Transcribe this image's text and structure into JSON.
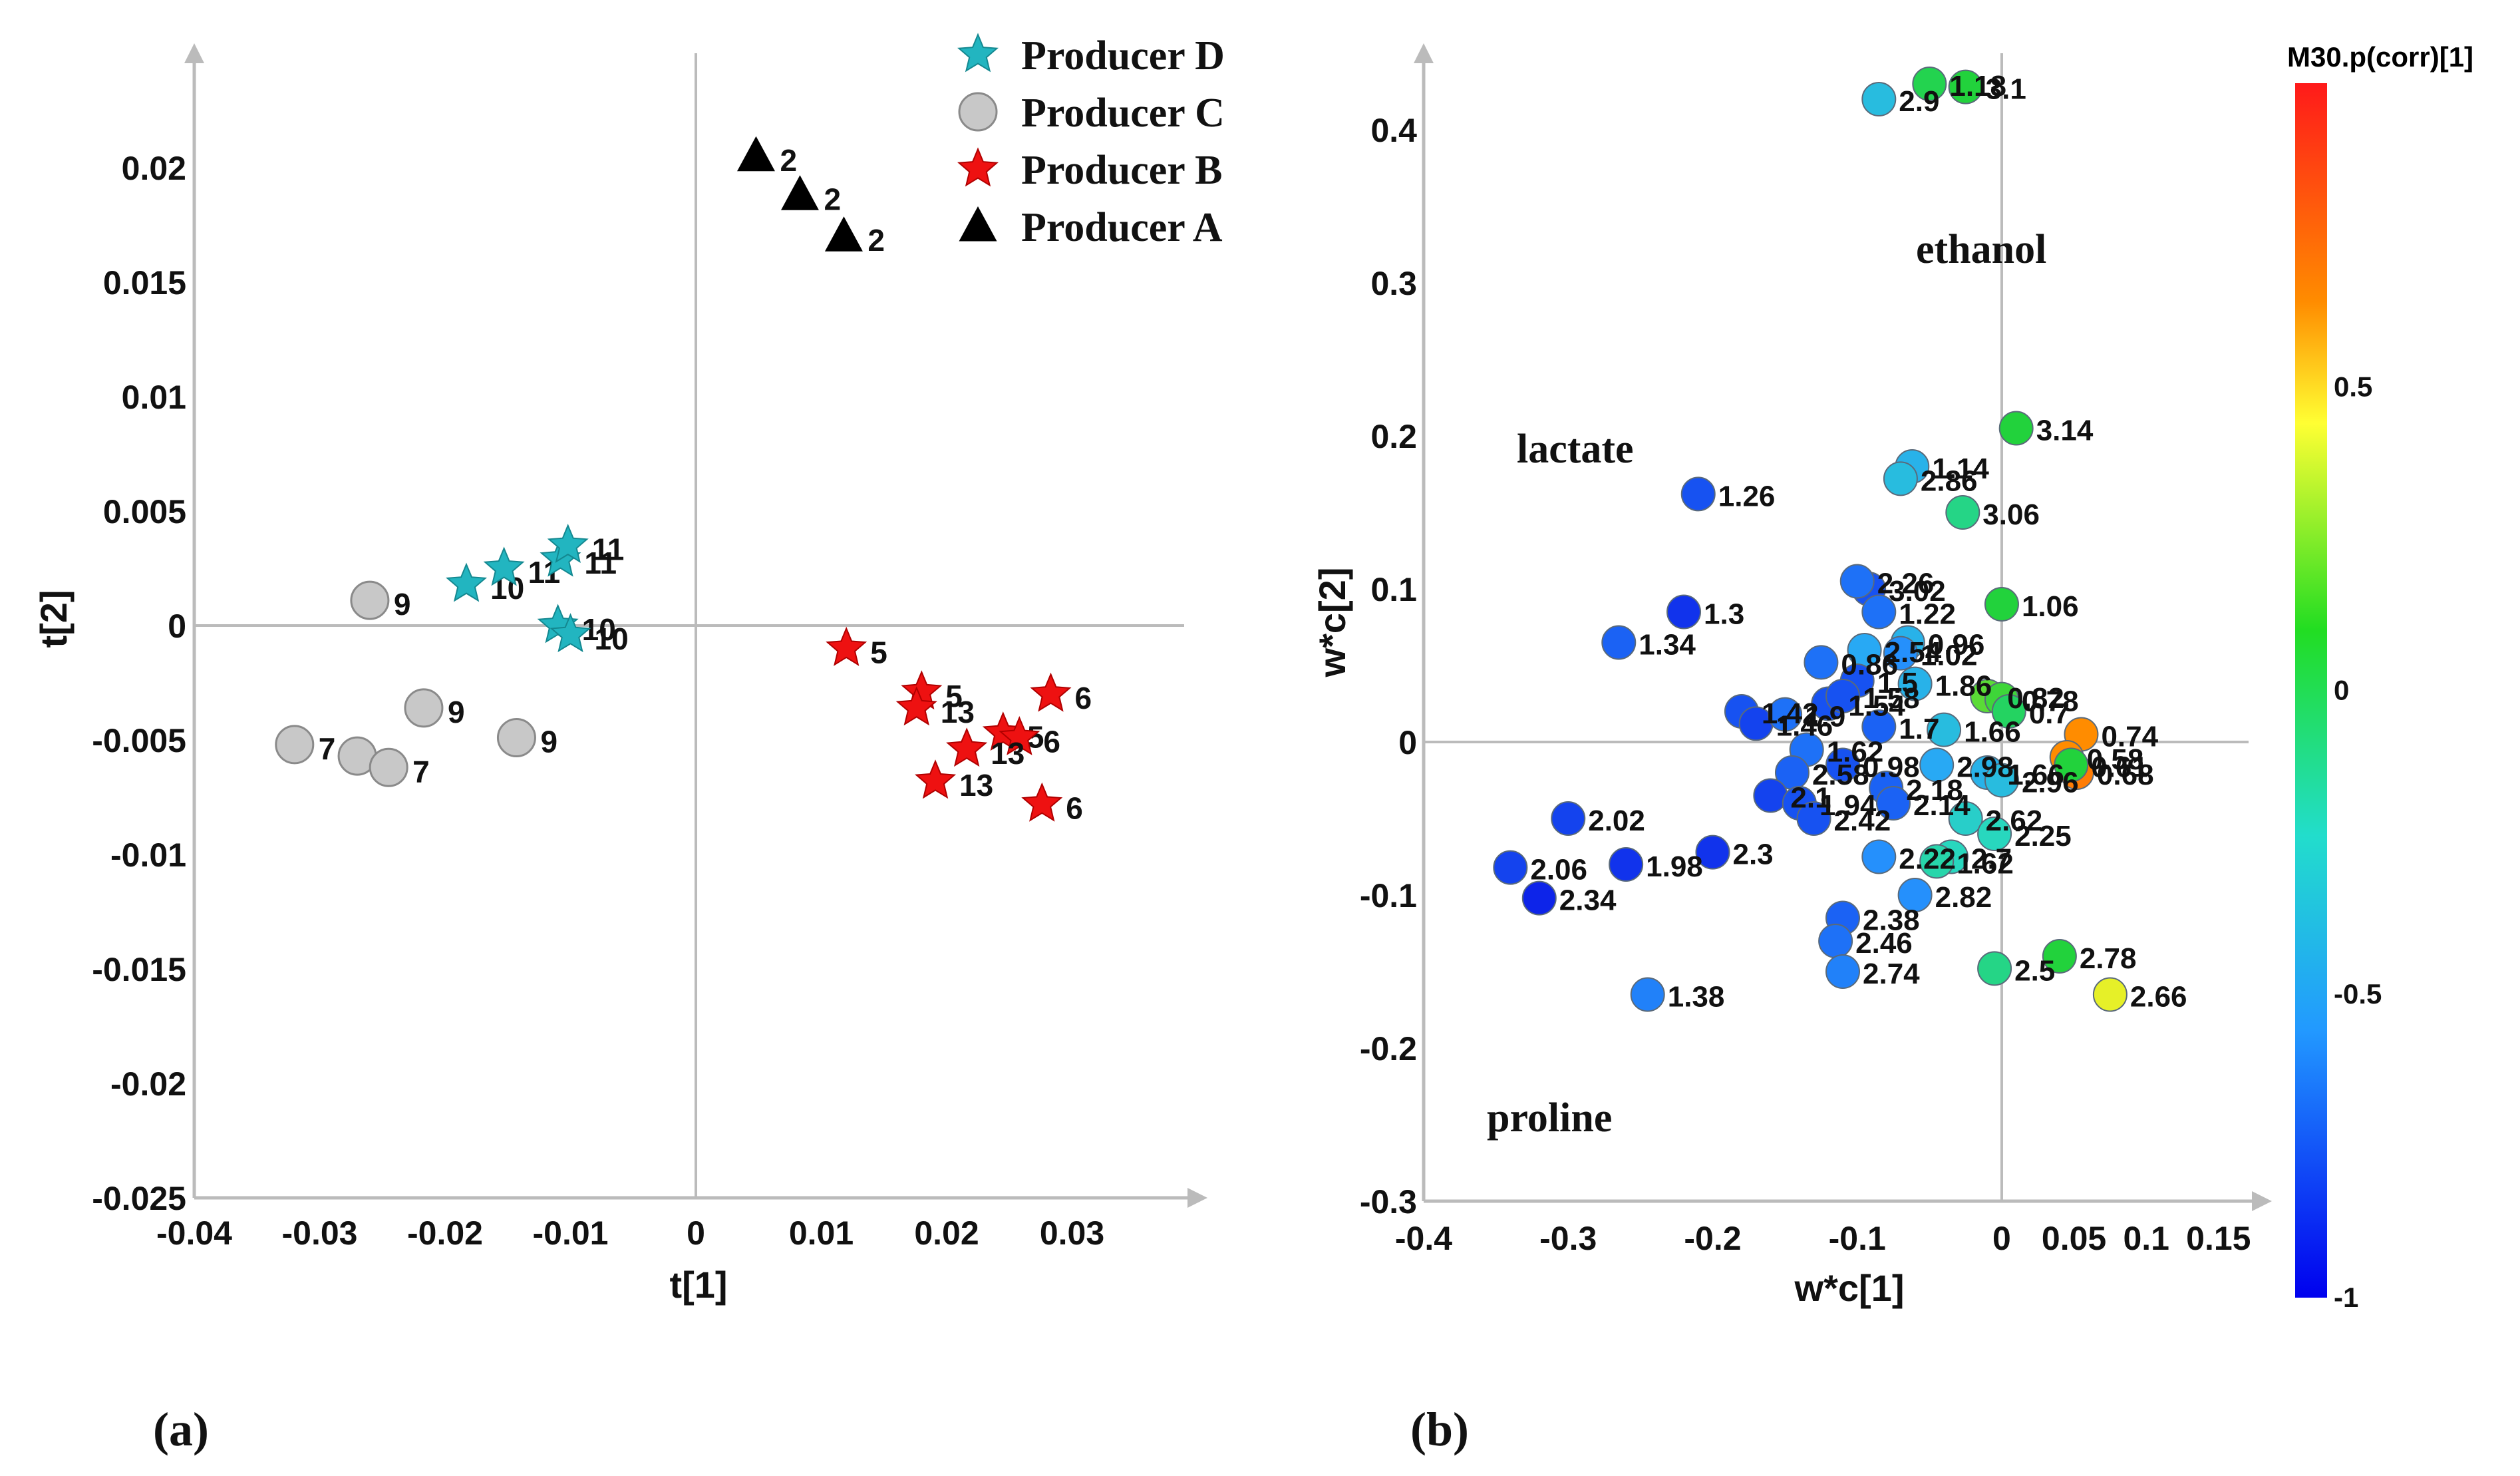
{
  "chart_data": [
    {
      "type": "scatter",
      "panel_label": "(a)",
      "xlabel": "t[1]",
      "ylabel": "t[2]",
      "xlim": [
        -0.04,
        0.04
      ],
      "ylim": [
        -0.025,
        0.025
      ],
      "x_ticks": [
        "-0.04",
        "-0.03",
        "-0.02",
        "-0.01",
        "0",
        "0.01",
        "0.02",
        "0.03"
      ],
      "x_tick_values": [
        -0.04,
        -0.03,
        -0.02,
        -0.01,
        0,
        0.01,
        0.02,
        0.03
      ],
      "y_ticks": [
        "0.02",
        "0.015",
        "0.01",
        "0.005",
        "0",
        "-0.005",
        "-0.01",
        "-0.015",
        "-0.02",
        "-0.025"
      ],
      "y_tick_values": [
        0.02,
        0.015,
        0.01,
        0.005,
        0,
        -0.005,
        -0.01,
        -0.015,
        -0.02,
        -0.025
      ],
      "legend_position": "top-right",
      "series": [
        {
          "name": "Producer D",
          "marker": "star",
          "color": "#22b5c0",
          "points": [
            {
              "x": -0.0183,
              "y": 0.0018,
              "label": "10"
            },
            {
              "x": -0.0153,
              "y": 0.0025,
              "label": "11"
            },
            {
              "x": -0.0108,
              "y": 0.0029,
              "label": "11"
            },
            {
              "x": -0.0102,
              "y": 0.0035,
              "label": "11"
            },
            {
              "x": -0.011,
              "y": 0.0,
              "label": "10"
            },
            {
              "x": -0.01,
              "y": -0.0004,
              "label": "10"
            }
          ]
        },
        {
          "name": "Producer C",
          "marker": "circle",
          "color": "#c8c8c8",
          "points": [
            {
              "x": -0.026,
              "y": 0.0011,
              "label": "9"
            },
            {
              "x": -0.0217,
              "y": -0.0036,
              "label": "9"
            },
            {
              "x": -0.0143,
              "y": -0.0049,
              "label": "9"
            },
            {
              "x": -0.032,
              "y": -0.0052,
              "label": "7"
            },
            {
              "x": -0.027,
              "y": -0.0057,
              "label": "7"
            },
            {
              "x": -0.0245,
              "y": -0.0062,
              "label": "7"
            }
          ]
        },
        {
          "name": "Producer B",
          "marker": "star",
          "color": "#ee1111",
          "points": [
            {
              "x": 0.012,
              "y": -0.001,
              "label": "5"
            },
            {
              "x": 0.018,
              "y": -0.0029,
              "label": "5"
            },
            {
              "x": 0.0176,
              "y": -0.0036,
              "label": "13"
            },
            {
              "x": 0.0245,
              "y": -0.0047,
              "label": "5"
            },
            {
              "x": 0.0258,
              "y": -0.0049,
              "label": "6"
            },
            {
              "x": 0.0283,
              "y": -0.003,
              "label": "6"
            },
            {
              "x": 0.0216,
              "y": -0.0054,
              "label": "13"
            },
            {
              "x": 0.0191,
              "y": -0.0068,
              "label": "13"
            },
            {
              "x": 0.0276,
              "y": -0.0078,
              "label": "6"
            }
          ]
        },
        {
          "name": "Producer A",
          "marker": "triangle",
          "color": "#000000",
          "points": [
            {
              "x": 0.0048,
              "y": 0.0205,
              "label": "2"
            },
            {
              "x": 0.0083,
              "y": 0.0188,
              "label": "2"
            },
            {
              "x": 0.0118,
              "y": 0.017,
              "label": "2"
            }
          ]
        }
      ]
    },
    {
      "type": "scatter",
      "panel_label": "(b)",
      "xlabel": "w*c[1]",
      "ylabel": "w*c[2]",
      "xlim": [
        -0.4,
        0.18
      ],
      "ylim": [
        -0.3,
        0.45
      ],
      "x_ticks": [
        "-0.4",
        "-0.3",
        "-0.2",
        "-0.1",
        "0",
        "0.05",
        "0.1",
        "0.15"
      ],
      "x_tick_values": [
        -0.4,
        -0.3,
        -0.2,
        -0.1,
        0,
        0.05,
        0.1,
        0.15
      ],
      "y_ticks": [
        "0.4",
        "0.3",
        "0.2",
        "0.1",
        "0",
        "-0.1",
        "-0.2",
        "-0.3"
      ],
      "y_tick_values": [
        0.4,
        0.3,
        0.2,
        0.1,
        0,
        -0.1,
        -0.2,
        -0.3
      ],
      "annotations": [
        "ethanol",
        "lactate",
        "proline"
      ],
      "colorbar": {
        "title": "M30.p(corr)[1]",
        "range": [
          -1,
          1
        ],
        "ticks": [
          "0.5",
          "0",
          "-0.5",
          "-1"
        ],
        "tick_values": [
          0.5,
          0,
          -0.5,
          -1
        ]
      },
      "points": [
        {
          "x": -0.085,
          "y": 0.42,
          "c": -0.4,
          "label": "2.9"
        },
        {
          "x": -0.05,
          "y": 0.43,
          "c": 0.05,
          "label": "1.18"
        },
        {
          "x": -0.025,
          "y": 0.428,
          "c": 0.1,
          "label": "3.1"
        },
        {
          "x": -0.062,
          "y": 0.18,
          "c": -0.45,
          "label": "1.14"
        },
        {
          "x": -0.07,
          "y": 0.172,
          "c": -0.4,
          "label": "2.86"
        },
        {
          "x": 0.01,
          "y": 0.205,
          "c": 0.1,
          "label": "3.14"
        },
        {
          "x": -0.027,
          "y": 0.15,
          "c": -0.1,
          "label": "3.06"
        },
        {
          "x": -0.21,
          "y": 0.162,
          "c": -0.8,
          "label": "1.26"
        },
        {
          "x": -0.092,
          "y": 0.1,
          "c": -0.8,
          "label": "3.02"
        },
        {
          "x": -0.1,
          "y": 0.105,
          "c": -0.7,
          "label": "2.26"
        },
        {
          "x": -0.085,
          "y": 0.085,
          "c": -0.7,
          "label": "1.22"
        },
        {
          "x": -0.065,
          "y": 0.065,
          "c": -0.45,
          "label": "0.96"
        },
        {
          "x": 0.0,
          "y": 0.09,
          "c": 0.1,
          "label": "1.06"
        },
        {
          "x": -0.22,
          "y": 0.085,
          "c": -0.9,
          "label": "1.3"
        },
        {
          "x": -0.265,
          "y": 0.065,
          "c": -0.75,
          "label": "1.34"
        },
        {
          "x": -0.095,
          "y": 0.06,
          "c": -0.5,
          "label": "2.54"
        },
        {
          "x": -0.125,
          "y": 0.052,
          "c": -0.7,
          "label": "0.86"
        },
        {
          "x": -0.07,
          "y": 0.058,
          "c": -0.6,
          "label": "1.02"
        },
        {
          "x": -0.1,
          "y": 0.04,
          "c": -0.8,
          "label": "1.5"
        },
        {
          "x": -0.06,
          "y": 0.038,
          "c": -0.45,
          "label": "1.86"
        },
        {
          "x": -0.01,
          "y": 0.03,
          "c": 0.2,
          "label": "0.82"
        },
        {
          "x": 0.0,
          "y": 0.028,
          "c": 0.15,
          "label": "0.78"
        },
        {
          "x": 0.005,
          "y": 0.02,
          "c": 0.0,
          "label": "0.7"
        },
        {
          "x": 0.055,
          "y": 0.005,
          "c": 0.65,
          "label": "0.74"
        },
        {
          "x": -0.085,
          "y": 0.01,
          "c": -0.75,
          "label": "1.7"
        },
        {
          "x": -0.04,
          "y": 0.008,
          "c": -0.4,
          "label": "1.66"
        },
        {
          "x": -0.18,
          "y": 0.02,
          "c": -0.8,
          "label": "1.42"
        },
        {
          "x": -0.17,
          "y": 0.012,
          "c": -0.85,
          "label": "1.46"
        },
        {
          "x": -0.15,
          "y": 0.018,
          "c": -0.7,
          "label": "1.9"
        },
        {
          "x": -0.12,
          "y": 0.025,
          "c": -0.8,
          "label": "1.54"
        },
        {
          "x": -0.11,
          "y": 0.03,
          "c": -0.8,
          "label": "1.58"
        },
        {
          "x": -0.135,
          "y": -0.005,
          "c": -0.7,
          "label": "1.62"
        },
        {
          "x": -0.11,
          "y": -0.015,
          "c": -0.8,
          "label": "0.98"
        },
        {
          "x": -0.145,
          "y": -0.02,
          "c": -0.75,
          "label": "2.58"
        },
        {
          "x": -0.16,
          "y": -0.035,
          "c": -0.85,
          "label": "2.1"
        },
        {
          "x": -0.14,
          "y": -0.04,
          "c": -0.8,
          "label": "1.94"
        },
        {
          "x": -0.08,
          "y": -0.03,
          "c": -0.75,
          "label": "2.18"
        },
        {
          "x": -0.075,
          "y": -0.04,
          "c": -0.75,
          "label": "2.14"
        },
        {
          "x": -0.045,
          "y": -0.015,
          "c": -0.5,
          "label": "2.98"
        },
        {
          "x": -0.01,
          "y": -0.02,
          "c": -0.45,
          "label": "1.66"
        },
        {
          "x": 0.0,
          "y": -0.025,
          "c": -0.4,
          "label": "2.96"
        },
        {
          "x": 0.045,
          "y": -0.01,
          "c": 0.65,
          "label": "0.58"
        },
        {
          "x": 0.052,
          "y": -0.02,
          "c": 0.7,
          "label": "0.68"
        },
        {
          "x": 0.048,
          "y": -0.015,
          "c": 0.1,
          "label": "0.61"
        },
        {
          "x": -0.3,
          "y": -0.05,
          "c": -0.85,
          "label": "2.02"
        },
        {
          "x": -0.26,
          "y": -0.08,
          "c": -0.9,
          "label": "1.98"
        },
        {
          "x": -0.34,
          "y": -0.082,
          "c": -0.85,
          "label": "2.06"
        },
        {
          "x": -0.32,
          "y": -0.102,
          "c": -0.95,
          "label": "2.34"
        },
        {
          "x": -0.2,
          "y": -0.072,
          "c": -0.9,
          "label": "2.3"
        },
        {
          "x": -0.13,
          "y": -0.05,
          "c": -0.8,
          "label": "2.42"
        },
        {
          "x": -0.085,
          "y": -0.075,
          "c": -0.6,
          "label": "2.22"
        },
        {
          "x": -0.06,
          "y": -0.1,
          "c": -0.6,
          "label": "2.82"
        },
        {
          "x": -0.025,
          "y": -0.05,
          "c": -0.3,
          "label": "2.62"
        },
        {
          "x": -0.005,
          "y": -0.06,
          "c": -0.25,
          "label": "2.25"
        },
        {
          "x": -0.035,
          "y": -0.075,
          "c": -0.25,
          "label": "2.7"
        },
        {
          "x": -0.045,
          "y": -0.078,
          "c": -0.2,
          "label": "1.62"
        },
        {
          "x": -0.11,
          "y": -0.115,
          "c": -0.75,
          "label": "2.38"
        },
        {
          "x": -0.115,
          "y": -0.13,
          "c": -0.7,
          "label": "2.46"
        },
        {
          "x": -0.11,
          "y": -0.15,
          "c": -0.65,
          "label": "2.74"
        },
        {
          "x": -0.005,
          "y": -0.148,
          "c": -0.1,
          "label": "2.5"
        },
        {
          "x": 0.04,
          "y": -0.14,
          "c": 0.1,
          "label": "2.78"
        },
        {
          "x": 0.075,
          "y": -0.165,
          "c": 0.45,
          "label": "2.66"
        },
        {
          "x": -0.245,
          "y": -0.165,
          "c": -0.65,
          "label": "1.38"
        }
      ]
    }
  ]
}
